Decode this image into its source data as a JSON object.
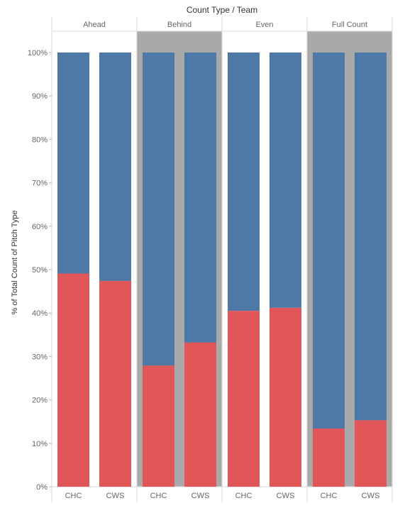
{
  "chart_data": {
    "type": "bar",
    "stacked": true,
    "title": "Count Type / Team",
    "ylabel": "% of Total Count of Pitch Type",
    "ylim": [
      0,
      100
    ],
    "yticks": [
      0,
      10,
      20,
      30,
      40,
      50,
      60,
      70,
      80,
      90,
      100
    ],
    "ytick_labels": [
      "0%",
      "10%",
      "20%",
      "30%",
      "40%",
      "50%",
      "60%",
      "70%",
      "80%",
      "90%",
      "100%"
    ],
    "panels": [
      {
        "name": "Ahead",
        "shaded": false,
        "bars": [
          {
            "team": "CHC",
            "lower": 49.1
          },
          {
            "team": "CWS",
            "lower": 47.4
          }
        ]
      },
      {
        "name": "Behind",
        "shaded": true,
        "bars": [
          {
            "team": "CHC",
            "lower": 27.9
          },
          {
            "team": "CWS",
            "lower": 33.2
          }
        ]
      },
      {
        "name": "Even",
        "shaded": false,
        "bars": [
          {
            "team": "CHC",
            "lower": 40.5
          },
          {
            "team": "CWS",
            "lower": 41.2
          }
        ]
      },
      {
        "name": "Full Count",
        "shaded": true,
        "bars": [
          {
            "team": "CHC",
            "lower": 13.4
          },
          {
            "team": "CWS",
            "lower": 15.3
          }
        ]
      }
    ],
    "colors": {
      "lower": "#e15759",
      "upper": "#4e79a7",
      "panel_shade": "#a9a9a9",
      "grid_line": "#e6e6e6",
      "axis_text": "#666666"
    }
  }
}
